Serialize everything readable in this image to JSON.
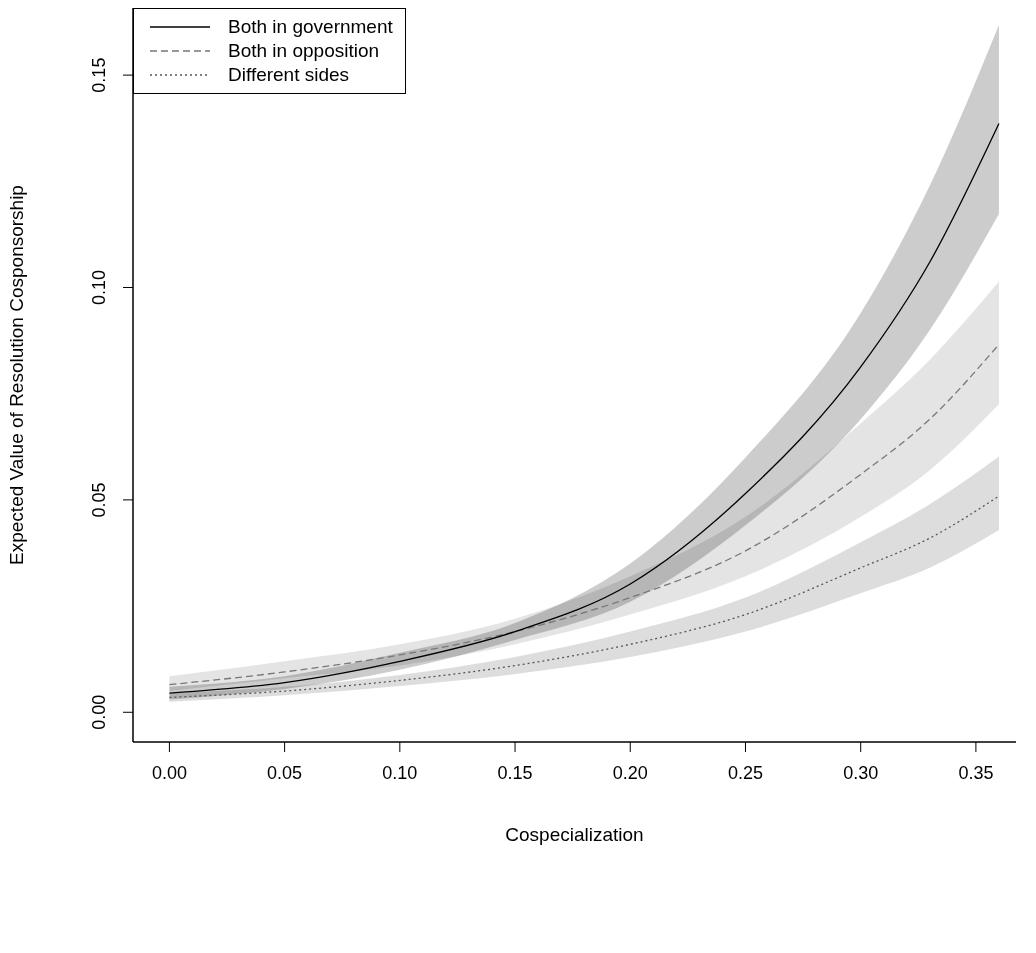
{
  "chart_data": {
    "type": "line",
    "xlabel": "Cospecialization",
    "ylabel": "Expected Value of Resolution Cosponsorship",
    "x": [
      0,
      0.05,
      0.1,
      0.15,
      0.2,
      0.25,
      0.3,
      0.33,
      0.36
    ],
    "series": [
      {
        "name": "Both in government",
        "color": "#000000",
        "line_style": "solid",
        "values": [
          0.0045,
          0.007,
          0.012,
          0.019,
          0.0302,
          0.0515,
          0.0813,
          0.106,
          0.1386
        ],
        "lower": [
          0.003,
          0.0055,
          0.01,
          0.017,
          0.026,
          0.044,
          0.069,
          0.09,
          0.1173
        ],
        "upper": [
          0.006,
          0.0085,
          0.014,
          0.021,
          0.035,
          0.06,
          0.094,
          0.124,
          0.1618
        ]
      },
      {
        "name": "Both in opposition",
        "color": "#777777",
        "line_style": "dashed",
        "values": [
          0.0065,
          0.0095,
          0.0135,
          0.019,
          0.027,
          0.038,
          0.056,
          0.069,
          0.0866
        ],
        "lower": [
          0.005,
          0.008,
          0.011,
          0.016,
          0.023,
          0.032,
          0.046,
          0.057,
          0.0725
        ],
        "upper": [
          0.0085,
          0.012,
          0.016,
          0.022,
          0.032,
          0.046,
          0.068,
          0.083,
          0.1014
        ]
      },
      {
        "name": "Different sides",
        "color": "#555555",
        "line_style": "dotted",
        "values": [
          0.0035,
          0.005,
          0.0075,
          0.011,
          0.016,
          0.023,
          0.034,
          0.041,
          0.0509
        ],
        "lower": [
          0.0025,
          0.004,
          0.0062,
          0.009,
          0.013,
          0.019,
          0.028,
          0.034,
          0.0429
        ],
        "upper": [
          0.0045,
          0.006,
          0.0088,
          0.013,
          0.019,
          0.027,
          0.04,
          0.049,
          0.0602
        ]
      }
    ],
    "xlim": [
      -0.0158,
      0.3674
    ],
    "xticks": [
      {
        "value": 0,
        "label": "0.00"
      },
      {
        "value": 0.05,
        "label": "0.05"
      },
      {
        "value": 0.1,
        "label": "0.10"
      },
      {
        "value": 0.15,
        "label": "0.15"
      },
      {
        "value": 0.2,
        "label": "0.20"
      },
      {
        "value": 0.25,
        "label": "0.25"
      },
      {
        "value": 0.3,
        "label": "0.30"
      },
      {
        "value": 0.35,
        "label": "0.35"
      }
    ],
    "ylim": [
      -0.007,
      0.1658
    ],
    "yticks": [
      {
        "value": 0,
        "label": "0.00"
      },
      {
        "value": 0.05,
        "label": "0.05"
      },
      {
        "value": 0.1,
        "label": "0.10"
      },
      {
        "value": 0.15,
        "label": "0.15"
      }
    ],
    "legend": "top left",
    "grid": false
  }
}
